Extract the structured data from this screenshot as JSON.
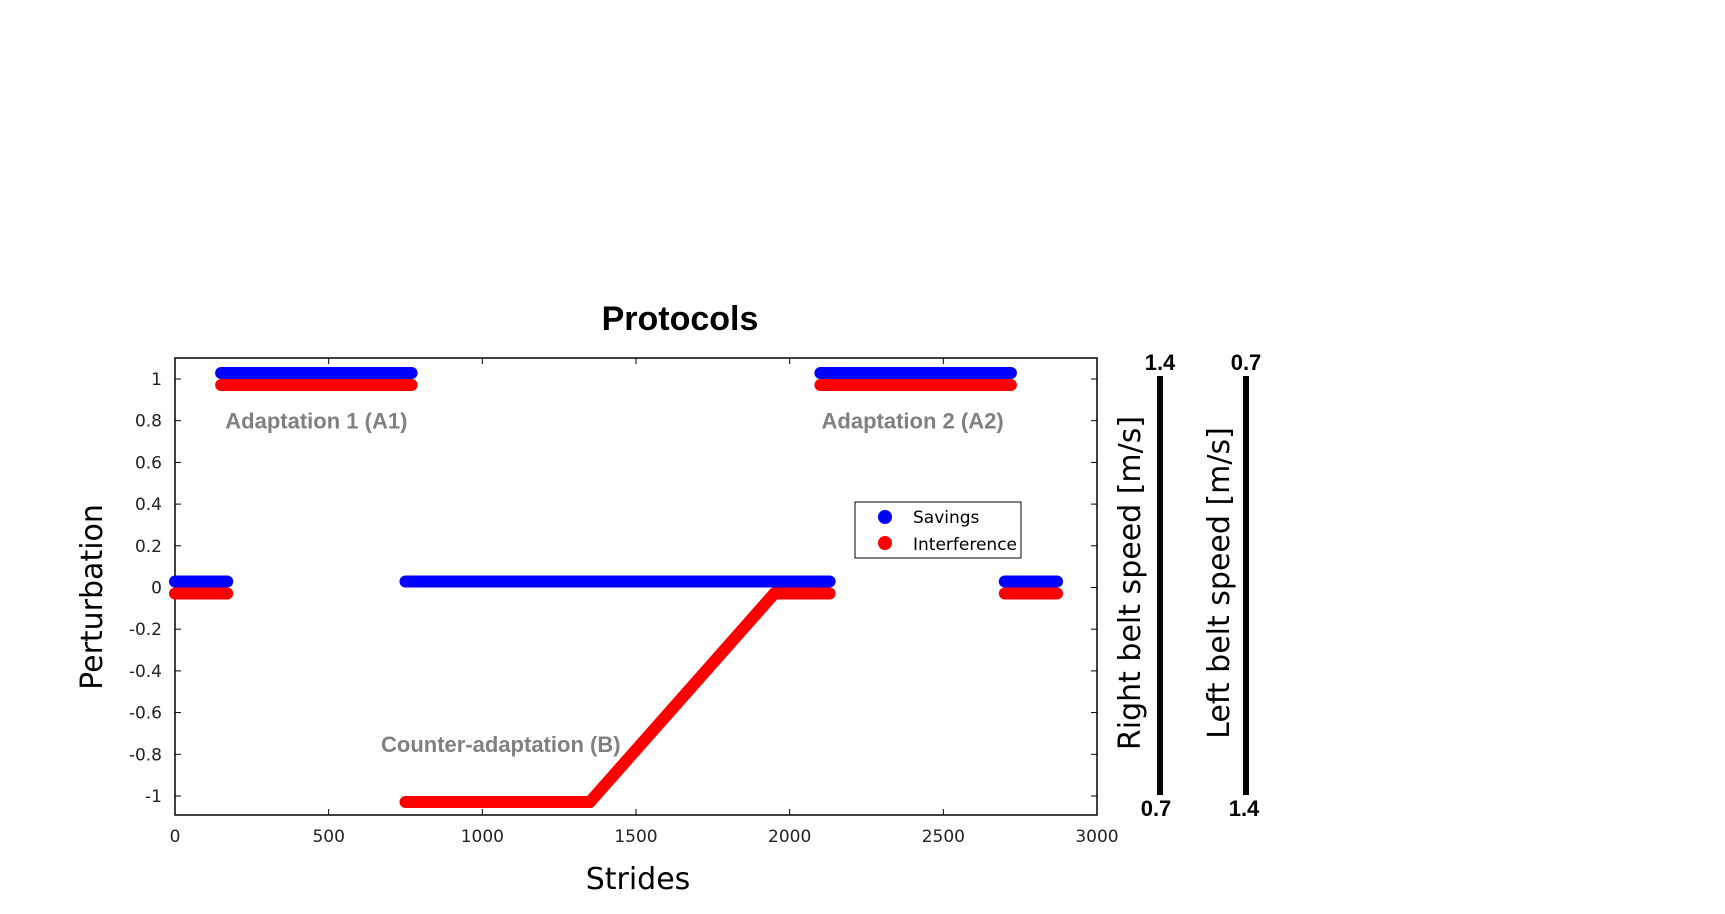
{
  "chart_data": {
    "type": "scatter",
    "title": "Protocols",
    "xlabel": "Strides",
    "ylabel": "Perturbation",
    "xlim": [
      0,
      3000
    ],
    "ylim": [
      -1.1,
      1.1
    ],
    "xticks": [
      0,
      500,
      1000,
      1500,
      2000,
      2500,
      3000
    ],
    "yticks": [
      1,
      0.8,
      0.6,
      0.4,
      0.2,
      0,
      -0.2,
      -0.4,
      -0.6,
      -0.8,
      -1
    ],
    "ytick_labels": [
      "1",
      "0.8",
      "0.6",
      "0.4",
      "0.2",
      "0",
      "-0.2",
      "-0.4",
      "-0.6",
      "-0.8",
      "-1"
    ],
    "series": [
      {
        "name": "Savings",
        "color": "#0000ff",
        "segments": [
          {
            "x": [
              0,
              170
            ],
            "y": [
              0,
              0
            ]
          },
          {
            "x": [
              150,
              770
            ],
            "y": [
              1,
              1
            ]
          },
          {
            "x": [
              750,
              2130
            ],
            "y": [
              0,
              0
            ]
          },
          {
            "x": [
              2100,
              2720
            ],
            "y": [
              1,
              1
            ]
          },
          {
            "x": [
              2700,
              2870
            ],
            "y": [
              0,
              0
            ]
          }
        ]
      },
      {
        "name": "Interference",
        "color": "#ff0000",
        "segments": [
          {
            "x": [
              0,
              170
            ],
            "y": [
              0,
              0
            ]
          },
          {
            "x": [
              150,
              770
            ],
            "y": [
              1,
              1
            ]
          },
          {
            "x": [
              750,
              1350
            ],
            "y": [
              -1,
              -1
            ]
          },
          {
            "x": [
              1350,
              1950
            ],
            "y": [
              -1,
              0
            ]
          },
          {
            "x": [
              1950,
              2130
            ],
            "y": [
              0,
              0
            ]
          },
          {
            "x": [
              2100,
              2720
            ],
            "y": [
              1,
              1
            ]
          },
          {
            "x": [
              2700,
              2870
            ],
            "y": [
              0,
              0
            ]
          }
        ]
      }
    ],
    "annotations": [
      {
        "text": "Adaptation 1 (A1)",
        "x": 460,
        "y": 0.8
      },
      {
        "text": "Adaptation 2 (A2)",
        "x": 2400,
        "y": 0.8
      },
      {
        "text": "Counter-adaptation  (B)",
        "x": 1060,
        "y": -0.75
      }
    ],
    "legend": {
      "placement": "right",
      "entries": [
        "Savings",
        "Interference"
      ]
    },
    "belt_speed_scales": [
      {
        "label": "Right belt speed [m/s]",
        "top": "1.4",
        "bottom": "0.7"
      },
      {
        "label": "Left belt speed [m/s]",
        "top": "0.7",
        "bottom": "1.4"
      }
    ]
  }
}
